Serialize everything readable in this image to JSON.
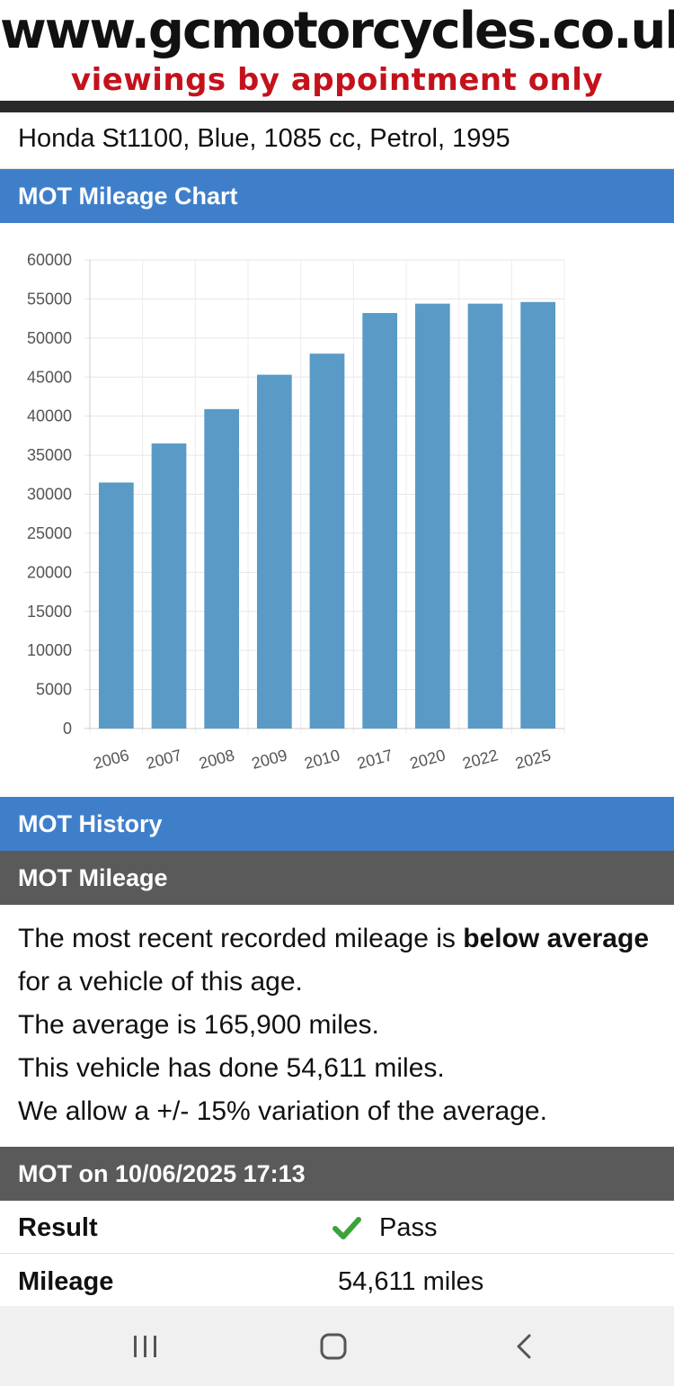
{
  "banner": {
    "site": "www.gcmotorcycles.co.uk",
    "tagline": "viewings by appointment only"
  },
  "vehicle": {
    "summary": "Honda St1100, Blue, 1085 cc, Petrol, 1995"
  },
  "sections": {
    "chart_title": "MOT Mileage Chart",
    "history_title": "MOT History",
    "mileage_title": "MOT Mileage"
  },
  "mileage": {
    "line1_pre": "The most recent recorded mileage is ",
    "line1_bold": "below average",
    "line1_post": " for a vehicle of this age.",
    "line2": "The average is 165,900 miles.",
    "line3": "This vehicle has done 54,611 miles.",
    "line4": "We allow a +/- 15% variation of the average."
  },
  "mot": {
    "header": "MOT on 10/06/2025 17:13",
    "result_label": "Result",
    "result_value": "Pass",
    "result_icon": "check-icon",
    "mileage_label": "Mileage",
    "mileage_value": "54,611 miles"
  },
  "colors": {
    "section_blue": "#3f7fca",
    "section_grey": "#5a5a5a",
    "bar": "#5a9ac6",
    "pass_green": "#3aa33a",
    "tagline_red": "#c4121c"
  },
  "chart_data": {
    "type": "bar",
    "categories": [
      "2006",
      "2007",
      "2008",
      "2009",
      "2010",
      "2017",
      "2020",
      "2022",
      "2025"
    ],
    "values": [
      31500,
      36500,
      40900,
      45300,
      48000,
      53200,
      54400,
      54400,
      54611
    ],
    "ylim": [
      0,
      60000
    ],
    "yticks": [
      0,
      5000,
      10000,
      15000,
      20000,
      25000,
      30000,
      35000,
      40000,
      45000,
      50000,
      55000,
      60000
    ],
    "grid": true,
    "legend": "none",
    "xlabel": "",
    "ylabel": ""
  },
  "navbar": {
    "recent_icon": "recent-apps-icon",
    "home_icon": "home-icon",
    "back_icon": "back-icon"
  }
}
